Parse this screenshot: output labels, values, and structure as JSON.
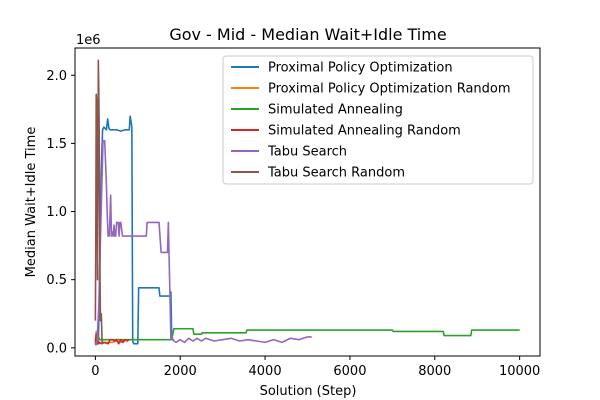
{
  "chart_data": {
    "type": "line",
    "title": "Gov - Mid - Median Wait+Idle Time",
    "xlabel": "Solution (Step)",
    "ylabel": "Median Wait+Idle Time",
    "y_offset_label": "1e6",
    "xlim": [
      -480,
      10480
    ],
    "ylim": [
      -0.06,
      2.2
    ],
    "x_ticks": [
      0,
      2000,
      4000,
      6000,
      8000,
      10000
    ],
    "x_tick_labels": [
      "0",
      "2000",
      "4000",
      "6000",
      "8000",
      "10000"
    ],
    "y_ticks": [
      0.0,
      0.5,
      1.0,
      1.5,
      2.0
    ],
    "y_tick_labels": [
      "0.0",
      "0.5",
      "1.0",
      "1.5",
      "2.0"
    ],
    "grid": false,
    "legend_position": "top-right",
    "series": [
      {
        "name": "Proximal Policy Optimization",
        "color": "#1f77b4",
        "x": [
          0,
          50,
          70,
          90,
          110,
          140,
          170,
          200,
          230,
          260,
          290,
          320,
          350,
          400,
          500,
          600,
          700,
          800,
          820,
          860,
          880,
          900,
          960,
          1000,
          1020,
          1500,
          1520,
          1700,
          1720,
          1760,
          1780,
          1800,
          1820
        ],
        "y": [
          0.02,
          0.03,
          0.06,
          0.3,
          0.8,
          1.3,
          1.6,
          1.62,
          1.61,
          1.6,
          1.68,
          1.61,
          1.6,
          1.6,
          1.6,
          1.59,
          1.6,
          1.6,
          1.7,
          1.62,
          0.05,
          0.03,
          0.03,
          0.03,
          0.44,
          0.44,
          0.38,
          0.38,
          0.38,
          0.38,
          0.41,
          0.06,
          0.06
        ]
      },
      {
        "name": "Proximal Policy Optimization Random",
        "color": "#ff7f0e",
        "x": [
          0,
          20,
          40,
          60,
          80,
          100,
          140,
          200,
          300,
          400,
          500,
          600,
          700
        ],
        "y": [
          0.05,
          0.12,
          0.04,
          0.06,
          0.03,
          0.04,
          0.03,
          0.04,
          0.04,
          0.04,
          0.05,
          0.04,
          0.05
        ]
      },
      {
        "name": "Simulated Annealing",
        "color": "#2ca02c",
        "x": [
          0,
          60,
          100,
          300,
          600,
          1000,
          1500,
          1800,
          1850,
          2300,
          2320,
          2500,
          2520,
          3550,
          3570,
          7000,
          7020,
          8200,
          8220,
          8850,
          8870,
          10000
        ],
        "y": [
          0.05,
          0.09,
          0.06,
          0.06,
          0.06,
          0.06,
          0.06,
          0.06,
          0.14,
          0.14,
          0.1,
          0.1,
          0.11,
          0.11,
          0.13,
          0.13,
          0.12,
          0.12,
          0.09,
          0.09,
          0.13,
          0.13
        ]
      },
      {
        "name": "Simulated Annealing Random",
        "color": "#d62728",
        "x": [
          0,
          20,
          40,
          60,
          80,
          100,
          150,
          200,
          300,
          350,
          400,
          450,
          500,
          550,
          600,
          650,
          700,
          750,
          800
        ],
        "y": [
          0.03,
          0.1,
          0.04,
          0.05,
          0.03,
          0.04,
          0.03,
          0.04,
          0.03,
          0.06,
          0.06,
          0.05,
          0.06,
          0.03,
          0.06,
          0.04,
          0.06,
          0.05,
          0.06
        ]
      },
      {
        "name": "Tabu Search",
        "color": "#9467bd",
        "x": [
          0,
          40,
          80,
          120,
          180,
          220,
          260,
          280,
          300,
          330,
          360,
          380,
          400,
          420,
          440,
          460,
          480,
          500,
          540,
          560,
          580,
          600,
          640,
          700,
          800,
          850,
          900,
          1000,
          1200,
          1220,
          1300,
          1500,
          1550,
          1700,
          1720,
          1750,
          1780,
          1800,
          1850,
          1900,
          2000,
          2100,
          2200,
          2300,
          2400,
          2500,
          2600,
          2800,
          3000,
          3200,
          3400,
          3600,
          3800,
          4000,
          4200,
          4400,
          4600,
          4800,
          5000,
          5100
        ],
        "y": [
          0.02,
          0.05,
          0.3,
          0.8,
          1.52,
          1.52,
          1.2,
          0.98,
          0.82,
          0.82,
          1.12,
          0.82,
          0.85,
          0.82,
          0.9,
          0.82,
          0.82,
          0.92,
          0.92,
          0.82,
          0.92,
          0.92,
          0.82,
          0.82,
          0.82,
          0.82,
          0.82,
          0.82,
          0.82,
          0.92,
          0.92,
          0.92,
          0.7,
          0.7,
          0.92,
          0.5,
          0.06,
          0.08,
          0.05,
          0.04,
          0.06,
          0.04,
          0.07,
          0.05,
          0.07,
          0.05,
          0.07,
          0.05,
          0.06,
          0.07,
          0.05,
          0.06,
          0.05,
          0.04,
          0.06,
          0.04,
          0.07,
          0.06,
          0.08,
          0.08
        ]
      },
      {
        "name": "Tabu Search Random",
        "color": "#8c564b",
        "x": [
          0,
          10,
          20,
          30,
          40,
          50,
          60,
          70,
          80,
          90,
          100,
          110,
          120,
          140,
          160,
          180,
          200
        ],
        "y": [
          0.2,
          0.8,
          1.86,
          1.82,
          1.4,
          0.5,
          1.2,
          2.11,
          1.9,
          1.6,
          1.0,
          0.5,
          0.2,
          0.25,
          0.03,
          0.04,
          0.03
        ]
      }
    ]
  }
}
